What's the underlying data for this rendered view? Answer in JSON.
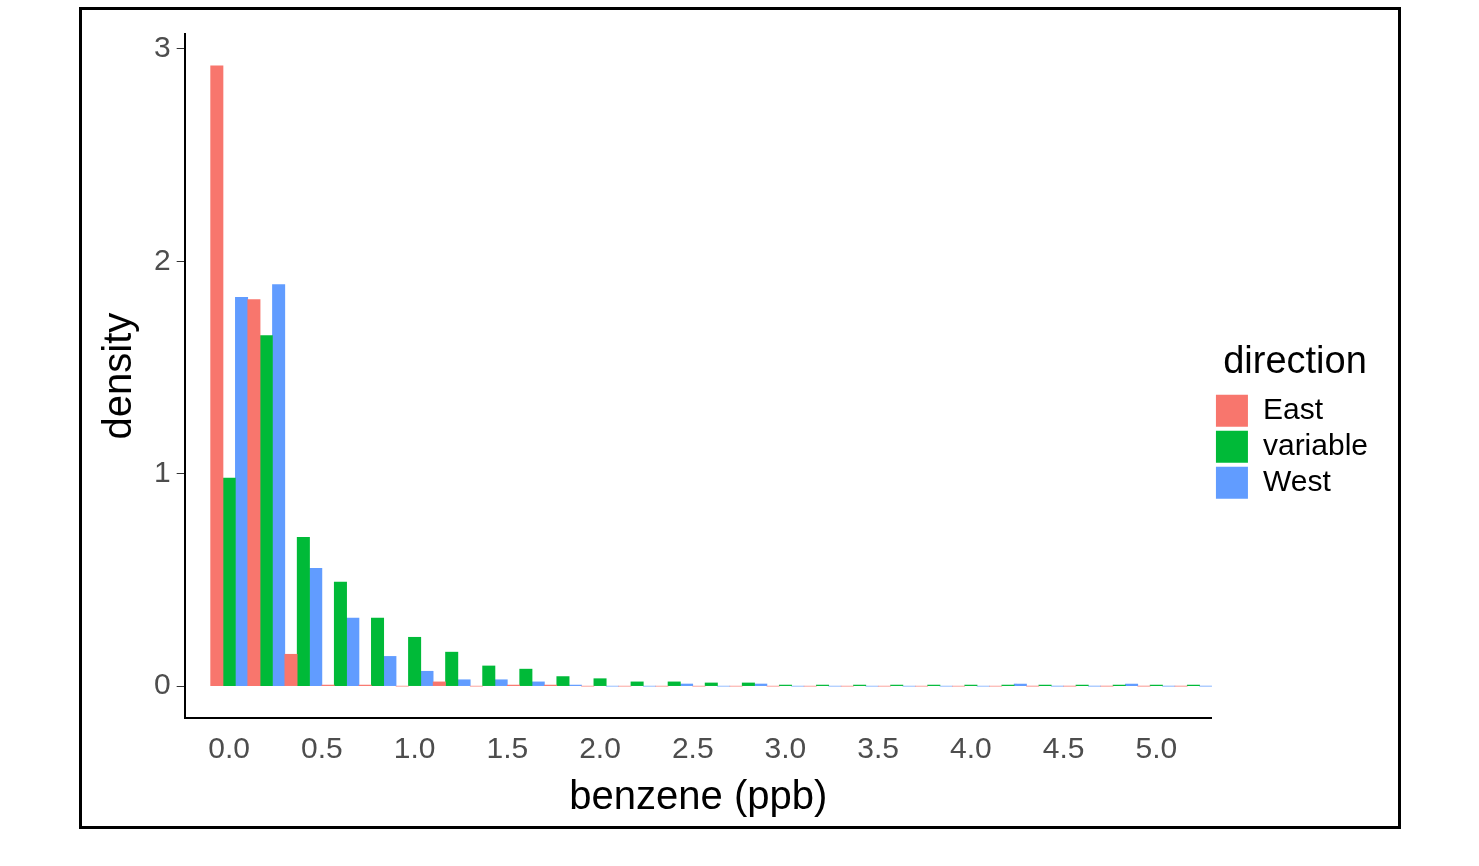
{
  "chart_data": {
    "type": "histogram",
    "xlabel": "benzene (ppb)",
    "ylabel": "density",
    "legend_title": "direction",
    "legend": "right",
    "bins": [
      -0.1,
      0.1,
      0.3,
      0.5,
      0.7,
      0.9,
      1.1,
      1.3,
      1.5,
      1.7,
      1.9,
      2.1,
      2.3,
      2.5,
      2.7,
      2.9,
      3.1,
      3.3,
      3.5,
      3.7,
      3.9,
      4.1,
      4.3,
      4.5,
      4.7,
      4.9,
      5.1,
      5.3
    ],
    "xlim": [
      -0.24,
      5.3
    ],
    "xticks": [
      {
        "value": 0,
        "label": "0.0"
      },
      {
        "value": 0.5,
        "label": "0.5"
      },
      {
        "value": 1,
        "label": "1.0"
      },
      {
        "value": 1.5,
        "label": "1.5"
      },
      {
        "value": 2,
        "label": "2.0"
      },
      {
        "value": 2.5,
        "label": "2.5"
      },
      {
        "value": 3,
        "label": "3.0"
      },
      {
        "value": 3.5,
        "label": "3.5"
      },
      {
        "value": 4,
        "label": "4.0"
      },
      {
        "value": 4.5,
        "label": "4.5"
      },
      {
        "value": 5,
        "label": "5.0"
      }
    ],
    "ylim": [
      -0.15,
      3.07
    ],
    "yticks": [
      0,
      1,
      2,
      3
    ],
    "series": [
      {
        "name": "East",
        "color": "#f8766d",
        "values": [
          2.92,
          1.82,
          0.15,
          0.005,
          0.005,
          0,
          0.02,
          0,
          0.005,
          0.005,
          0,
          0,
          0,
          0,
          0,
          0,
          0,
          0,
          0,
          0,
          0,
          0,
          0,
          0,
          0,
          0,
          0
        ]
      },
      {
        "name": "variable",
        "color": "#00ba38",
        "values": [
          0.98,
          1.65,
          0.7,
          0.49,
          0.32,
          0.23,
          0.16,
          0.095,
          0.08,
          0.045,
          0.035,
          0.02,
          0.02,
          0.015,
          0.015,
          0.005,
          0.005,
          0.005,
          0.005,
          0.005,
          0.005,
          0.005,
          0.005,
          0.005,
          0.005,
          0.005,
          0.005
        ]
      },
      {
        "name": "West",
        "color": "#619cff",
        "values": [
          1.83,
          1.89,
          0.555,
          0.32,
          0.14,
          0.07,
          0.03,
          0.03,
          0.02,
          0.005,
          0,
          0,
          0.01,
          0,
          0.01,
          0,
          0,
          0,
          0,
          0,
          0,
          0.01,
          0,
          0,
          0.01,
          0,
          0
        ]
      }
    ]
  }
}
